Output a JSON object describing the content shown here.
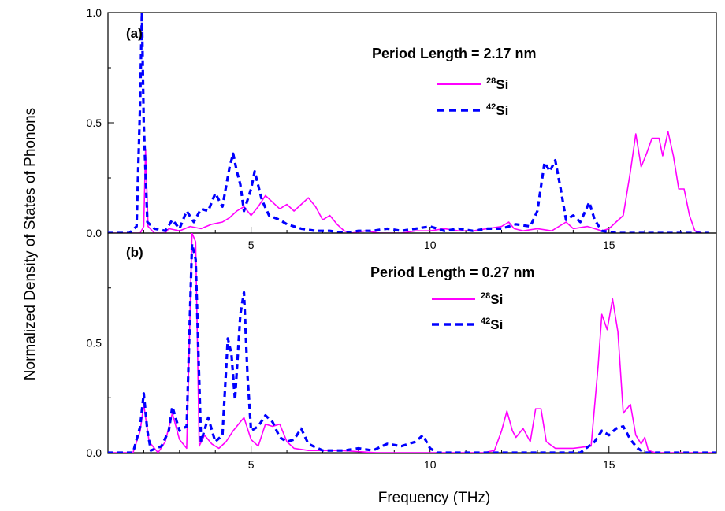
{
  "figure": {
    "ylabel": "Normalized Density of States of Phonons",
    "xlabel": "Frequency (THz)"
  },
  "colors": {
    "si28": "#ff00ff",
    "si42": "#0000ff"
  },
  "chart_data": [
    {
      "type": "line",
      "panel": "(a)",
      "legend_title": "Period Length = 2.17 nm",
      "xlim": [
        1,
        18
      ],
      "ylim": [
        0,
        1.0
      ],
      "x_ticks": [
        5,
        10,
        15
      ],
      "y_ticks": [
        "0.0",
        "0.5",
        "1.0"
      ],
      "series": [
        {
          "name": "28Si",
          "mass": "28",
          "element": "Si",
          "style": "solid",
          "points": [
            [
              1,
              0
            ],
            [
              1.9,
              0
            ],
            [
              2.0,
              0.03
            ],
            [
              2.05,
              0.38
            ],
            [
              2.12,
              0.03
            ],
            [
              2.3,
              0
            ],
            [
              2.6,
              0
            ],
            [
              2.7,
              0.02
            ],
            [
              3.0,
              0.01
            ],
            [
              3.3,
              0.03
            ],
            [
              3.6,
              0.02
            ],
            [
              3.9,
              0.04
            ],
            [
              4.2,
              0.05
            ],
            [
              4.4,
              0.07
            ],
            [
              4.6,
              0.1
            ],
            [
              4.8,
              0.12
            ],
            [
              5.0,
              0.08
            ],
            [
              5.2,
              0.12
            ],
            [
              5.4,
              0.17
            ],
            [
              5.6,
              0.14
            ],
            [
              5.8,
              0.11
            ],
            [
              6.0,
              0.13
            ],
            [
              6.2,
              0.1
            ],
            [
              6.4,
              0.13
            ],
            [
              6.6,
              0.16
            ],
            [
              6.8,
              0.12
            ],
            [
              7.0,
              0.06
            ],
            [
              7.2,
              0.08
            ],
            [
              7.4,
              0.04
            ],
            [
              7.6,
              0.01
            ],
            [
              7.8,
              0
            ],
            [
              8.2,
              0.01
            ],
            [
              8.6,
              0
            ],
            [
              9.2,
              0
            ],
            [
              9.6,
              0.01
            ],
            [
              10.0,
              0.01
            ],
            [
              10.4,
              0.02
            ],
            [
              10.8,
              0.01
            ],
            [
              11.2,
              0.01
            ],
            [
              11.6,
              0.02
            ],
            [
              12.0,
              0.03
            ],
            [
              12.2,
              0.05
            ],
            [
              12.35,
              0.02
            ],
            [
              12.6,
              0.01
            ],
            [
              13.0,
              0.02
            ],
            [
              13.4,
              0.01
            ],
            [
              13.8,
              0.05
            ],
            [
              14.0,
              0.02
            ],
            [
              14.4,
              0.03
            ],
            [
              14.8,
              0.01
            ],
            [
              15.0,
              0.02
            ],
            [
              15.2,
              0.05
            ],
            [
              15.4,
              0.08
            ],
            [
              15.6,
              0.28
            ],
            [
              15.75,
              0.45
            ],
            [
              15.9,
              0.3
            ],
            [
              16.05,
              0.36
            ],
            [
              16.2,
              0.43
            ],
            [
              16.4,
              0.43
            ],
            [
              16.5,
              0.35
            ],
            [
              16.65,
              0.46
            ],
            [
              16.8,
              0.35
            ],
            [
              16.95,
              0.2
            ],
            [
              17.1,
              0.2
            ],
            [
              17.25,
              0.08
            ],
            [
              17.4,
              0.01
            ],
            [
              17.6,
              0
            ]
          ]
        },
        {
          "name": "42Si",
          "mass": "42",
          "element": "Si",
          "style": "dashed",
          "points": [
            [
              1,
              0
            ],
            [
              1.6,
              0
            ],
            [
              1.8,
              0.03
            ],
            [
              1.9,
              0.6
            ],
            [
              1.95,
              1.0
            ],
            [
              2.0,
              0.5
            ],
            [
              2.1,
              0.05
            ],
            [
              2.3,
              0.02
            ],
            [
              2.6,
              0.01
            ],
            [
              2.8,
              0.06
            ],
            [
              3.0,
              0.02
            ],
            [
              3.2,
              0.1
            ],
            [
              3.4,
              0.05
            ],
            [
              3.6,
              0.11
            ],
            [
              3.8,
              0.1
            ],
            [
              4.0,
              0.18
            ],
            [
              4.2,
              0.12
            ],
            [
              4.4,
              0.3
            ],
            [
              4.5,
              0.36
            ],
            [
              4.6,
              0.28
            ],
            [
              4.7,
              0.22
            ],
            [
              4.8,
              0.1
            ],
            [
              5.0,
              0.2
            ],
            [
              5.1,
              0.28
            ],
            [
              5.3,
              0.15
            ],
            [
              5.5,
              0.08
            ],
            [
              5.8,
              0.06
            ],
            [
              6.0,
              0.04
            ],
            [
              6.4,
              0.02
            ],
            [
              6.8,
              0.01
            ],
            [
              7.2,
              0.01
            ],
            [
              7.6,
              0
            ],
            [
              8.0,
              0.01
            ],
            [
              8.4,
              0.01
            ],
            [
              8.8,
              0.02
            ],
            [
              9.2,
              0.01
            ],
            [
              9.6,
              0.02
            ],
            [
              10.0,
              0.03
            ],
            [
              10.4,
              0.01
            ],
            [
              10.8,
              0.02
            ],
            [
              11.2,
              0.01
            ],
            [
              11.6,
              0.02
            ],
            [
              12.0,
              0.02
            ],
            [
              12.4,
              0.04
            ],
            [
              12.8,
              0.03
            ],
            [
              13.0,
              0.1
            ],
            [
              13.2,
              0.32
            ],
            [
              13.35,
              0.28
            ],
            [
              13.5,
              0.33
            ],
            [
              13.65,
              0.2
            ],
            [
              13.8,
              0.06
            ],
            [
              14.0,
              0.08
            ],
            [
              14.2,
              0.05
            ],
            [
              14.45,
              0.14
            ],
            [
              14.6,
              0.06
            ],
            [
              14.8,
              0.01
            ],
            [
              15.2,
              0
            ],
            [
              17.8,
              0
            ]
          ]
        }
      ]
    },
    {
      "type": "line",
      "panel": "(b)",
      "legend_title": "Period Length = 0.27 nm",
      "xlim": [
        1,
        18
      ],
      "ylim": [
        0,
        1.0
      ],
      "x_ticks": [
        5,
        10,
        15
      ],
      "y_ticks": [
        "0.0",
        "0.5"
      ],
      "series": [
        {
          "name": "28Si",
          "mass": "28",
          "element": "Si",
          "style": "solid",
          "points": [
            [
              1,
              0
            ],
            [
              1.7,
              0
            ],
            [
              1.9,
              0.1
            ],
            [
              2.0,
              0.22
            ],
            [
              2.15,
              0.05
            ],
            [
              2.4,
              0
            ],
            [
              2.6,
              0.05
            ],
            [
              2.8,
              0.18
            ],
            [
              3.0,
              0.06
            ],
            [
              3.2,
              0.02
            ],
            [
              3.35,
              1.0
            ],
            [
              3.45,
              0.96
            ],
            [
              3.55,
              0.03
            ],
            [
              3.7,
              0.08
            ],
            [
              3.9,
              0.04
            ],
            [
              4.1,
              0.02
            ],
            [
              4.3,
              0.05
            ],
            [
              4.5,
              0.1
            ],
            [
              4.7,
              0.14
            ],
            [
              4.8,
              0.16
            ],
            [
              5.0,
              0.06
            ],
            [
              5.2,
              0.03
            ],
            [
              5.4,
              0.13
            ],
            [
              5.6,
              0.12
            ],
            [
              5.8,
              0.13
            ],
            [
              6.0,
              0.05
            ],
            [
              6.2,
              0.02
            ],
            [
              6.6,
              0.01
            ],
            [
              7.0,
              0.01
            ],
            [
              7.5,
              0.01
            ],
            [
              8.5,
              0
            ],
            [
              10.0,
              0
            ],
            [
              11.5,
              0
            ],
            [
              11.8,
              0.01
            ],
            [
              12.0,
              0.1
            ],
            [
              12.15,
              0.19
            ],
            [
              12.3,
              0.1
            ],
            [
              12.4,
              0.07
            ],
            [
              12.6,
              0.11
            ],
            [
              12.8,
              0.05
            ],
            [
              12.95,
              0.2
            ],
            [
              13.1,
              0.2
            ],
            [
              13.25,
              0.05
            ],
            [
              13.5,
              0.02
            ],
            [
              14.0,
              0.02
            ],
            [
              14.5,
              0.03
            ],
            [
              14.7,
              0.4
            ],
            [
              14.8,
              0.63
            ],
            [
              14.95,
              0.56
            ],
            [
              15.1,
              0.7
            ],
            [
              15.25,
              0.55
            ],
            [
              15.4,
              0.18
            ],
            [
              15.6,
              0.22
            ],
            [
              15.75,
              0.08
            ],
            [
              15.9,
              0.04
            ],
            [
              16.0,
              0.07
            ],
            [
              16.1,
              0.01
            ],
            [
              16.3,
              0
            ],
            [
              18,
              0
            ]
          ]
        },
        {
          "name": "42Si",
          "mass": "42",
          "element": "Si",
          "style": "dashed",
          "points": [
            [
              1,
              0
            ],
            [
              1.7,
              0
            ],
            [
              1.9,
              0.12
            ],
            [
              2.0,
              0.27
            ],
            [
              2.1,
              0.1
            ],
            [
              2.2,
              0.01
            ],
            [
              2.5,
              0.03
            ],
            [
              2.7,
              0.1
            ],
            [
              2.8,
              0.21
            ],
            [
              3.0,
              0.1
            ],
            [
              3.2,
              0.12
            ],
            [
              3.35,
              0.95
            ],
            [
              3.45,
              0.88
            ],
            [
              3.6,
              0.05
            ],
            [
              3.8,
              0.16
            ],
            [
              4.0,
              0.05
            ],
            [
              4.2,
              0.08
            ],
            [
              4.35,
              0.52
            ],
            [
              4.45,
              0.45
            ],
            [
              4.55,
              0.24
            ],
            [
              4.7,
              0.63
            ],
            [
              4.8,
              0.73
            ],
            [
              4.9,
              0.35
            ],
            [
              5.0,
              0.1
            ],
            [
              5.2,
              0.12
            ],
            [
              5.4,
              0.17
            ],
            [
              5.6,
              0.14
            ],
            [
              5.8,
              0.07
            ],
            [
              6.0,
              0.05
            ],
            [
              6.2,
              0.06
            ],
            [
              6.4,
              0.11
            ],
            [
              6.6,
              0.04
            ],
            [
              7.0,
              0.01
            ],
            [
              7.6,
              0.01
            ],
            [
              8.0,
              0.02
            ],
            [
              8.4,
              0.01
            ],
            [
              8.8,
              0.04
            ],
            [
              9.2,
              0.03
            ],
            [
              9.6,
              0.05
            ],
            [
              9.8,
              0.08
            ],
            [
              10.0,
              0.02
            ],
            [
              10.2,
              0
            ],
            [
              14.2,
              0
            ],
            [
              14.6,
              0.05
            ],
            [
              14.8,
              0.1
            ],
            [
              15.0,
              0.08
            ],
            [
              15.2,
              0.11
            ],
            [
              15.4,
              0.12
            ],
            [
              15.6,
              0.06
            ],
            [
              15.8,
              0.02
            ],
            [
              16.0,
              0
            ],
            [
              18,
              0
            ]
          ]
        }
      ]
    }
  ]
}
